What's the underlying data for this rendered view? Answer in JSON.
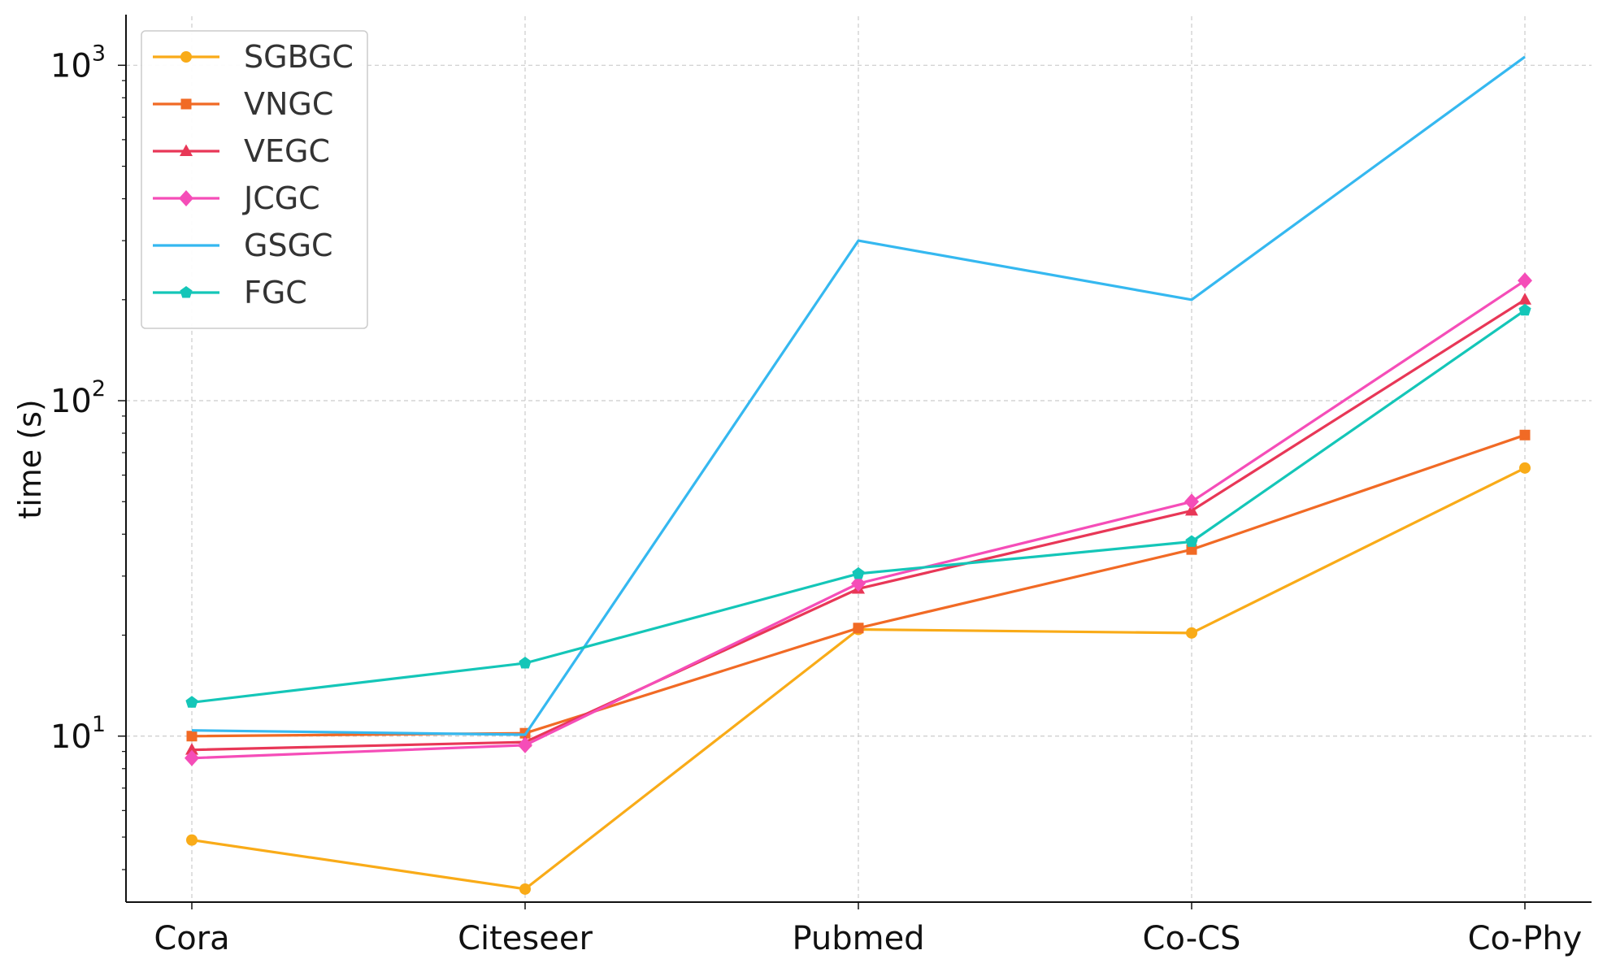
{
  "chart_data": {
    "type": "line",
    "title": "",
    "xlabel": "",
    "ylabel": "time (s)",
    "yscale": "log",
    "ylim": [
      3.2,
      1400
    ],
    "grid": true,
    "legend_position": "top-left",
    "categories": [
      "Cora",
      "Citeseer",
      "Pubmed",
      "Co-CS",
      "Co-Phy"
    ],
    "y_ticks": [
      {
        "value": 10,
        "base": "10",
        "exp": "1"
      },
      {
        "value": 100,
        "base": "10",
        "exp": "2"
      },
      {
        "value": 1000,
        "base": "10",
        "exp": "3"
      }
    ],
    "series": [
      {
        "name": "SGBGC",
        "color": "#F9AB18",
        "marker": "circle",
        "values": [
          4.9,
          3.5,
          20.8,
          20.3,
          63
        ]
      },
      {
        "name": "VNGC",
        "color": "#F16A25",
        "marker": "square",
        "values": [
          10.0,
          10.2,
          21.0,
          36,
          79
        ]
      },
      {
        "name": "VEGC",
        "color": "#E83757",
        "marker": "triangle",
        "values": [
          9.1,
          9.6,
          27.5,
          47,
          200
        ]
      },
      {
        "name": "JCGC",
        "color": "#F54DB8",
        "marker": "diamond",
        "values": [
          8.6,
          9.4,
          28.5,
          50,
          228
        ]
      },
      {
        "name": "GSGC",
        "color": "#35B8F0",
        "marker": "none",
        "values": [
          10.4,
          10.1,
          300,
          200,
          1060
        ]
      },
      {
        "name": "FGC",
        "color": "#14C6B8",
        "marker": "pentagon",
        "values": [
          12.6,
          16.5,
          30.5,
          38,
          186
        ]
      }
    ]
  }
}
